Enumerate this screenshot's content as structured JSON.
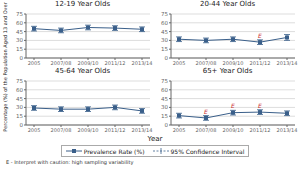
{
  "chart_data": [
    {
      "type": "line",
      "title": "12-19 Year Olds",
      "categories": [
        "2005",
        "2007/08",
        "2009/10",
        "2011/12",
        "2013/14"
      ],
      "series": [
        {
          "name": "Prevalence Rate (%)",
          "ci_name": "95% Confidence Interval",
          "color": "#3a5f8a",
          "marker": "square",
          "line_style": "solid",
          "values": [
            50,
            47,
            52,
            51,
            49
          ],
          "ci_lower": [
            46,
            43,
            48,
            47,
            45
          ],
          "ci_upper": [
            54,
            51,
            56,
            55,
            53
          ]
        }
      ],
      "annotations": [],
      "ylim": [
        0,
        75
      ],
      "yticks": [
        0,
        15,
        30,
        45,
        60,
        75
      ],
      "grid": true
    },
    {
      "type": "line",
      "title": "20-44 Year Olds",
      "categories": [
        "2005",
        "2007/08",
        "2009/10",
        "2011/12",
        "2013/14"
      ],
      "series": [
        {
          "name": "Prevalence Rate (%)",
          "ci_name": "95% Confidence Interval",
          "color": "#3a5f8a",
          "marker": "square",
          "line_style": "solid",
          "values": [
            32,
            30,
            32,
            27,
            35
          ],
          "ci_lower": [
            28,
            26,
            28,
            23,
            30
          ],
          "ci_upper": [
            36,
            34,
            36,
            31,
            40
          ]
        }
      ],
      "annotations": [
        {
          "x": "2011/12",
          "text": "E",
          "color": "#cc3333"
        }
      ],
      "ylim": [
        0,
        75
      ],
      "yticks": [
        0,
        15,
        30,
        45,
        60,
        75
      ],
      "grid": true
    },
    {
      "type": "line",
      "title": "45-64 Year Olds",
      "categories": [
        "2005",
        "2007/08",
        "2009/10",
        "2011/12",
        "2013/14"
      ],
      "series": [
        {
          "name": "Prevalence Rate (%)",
          "ci_name": "95% Confidence Interval",
          "color": "#3a5f8a",
          "marker": "square",
          "line_style": "solid",
          "values": [
            29,
            27,
            27,
            30,
            24
          ],
          "ci_lower": [
            25,
            23,
            23,
            26,
            20
          ],
          "ci_upper": [
            33,
            31,
            31,
            34,
            28
          ]
        }
      ],
      "annotations": [],
      "ylim": [
        0,
        75
      ],
      "yticks": [
        0,
        15,
        30,
        45,
        60,
        75
      ],
      "grid": true
    },
    {
      "type": "line",
      "title": "65+ Year Olds",
      "categories": [
        "2005",
        "2007/08",
        "2009/10",
        "2011/12",
        "2013/14"
      ],
      "series": [
        {
          "name": "Prevalence Rate (%)",
          "ci_name": "95% Confidence Interval",
          "color": "#3a5f8a",
          "marker": "square",
          "line_style": "solid",
          "values": [
            16,
            12,
            21,
            22,
            20
          ],
          "ci_lower": [
            12,
            8,
            17,
            18,
            16
          ],
          "ci_upper": [
            20,
            16,
            25,
            26,
            24
          ]
        }
      ],
      "annotations": [
        {
          "x": "2007/08",
          "text": "E",
          "color": "#cc3333"
        },
        {
          "x": "2009/10",
          "text": "E",
          "color": "#cc3333"
        },
        {
          "x": "2011/12",
          "text": "E",
          "color": "#cc3333"
        }
      ],
      "ylim": [
        0,
        75
      ],
      "yticks": [
        0,
        15,
        30,
        45,
        60,
        75
      ],
      "grid": true
    }
  ],
  "ylabel": "Percentage (%) of the Population Aged 13 and Over",
  "xlabel": "Year",
  "footnote": "E - Interpret with caution: high sampling variability"
}
